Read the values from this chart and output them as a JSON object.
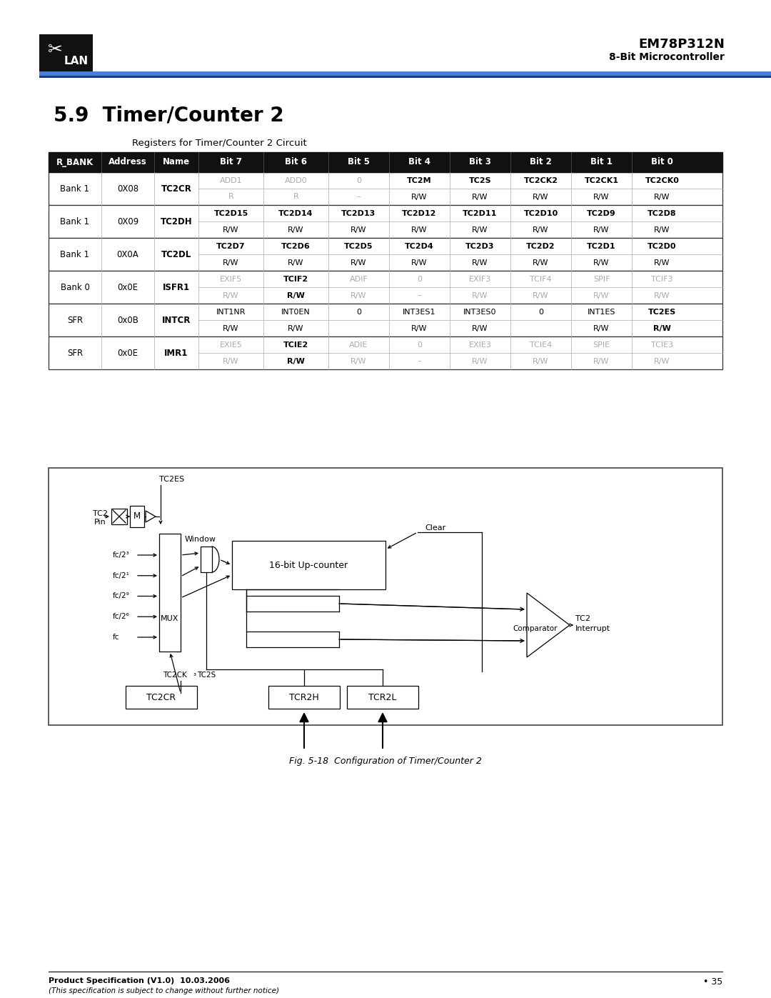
{
  "title_section": "5.9  Timer/Counter 2",
  "subtitle": "Registers for Timer/Counter 2 Circuit",
  "header_labels": [
    "R_BANK",
    "Address",
    "Name",
    "Bit 7",
    "Bit 6",
    "Bit 5",
    "Bit 4",
    "Bit 3",
    "Bit 2",
    "Bit 1",
    "Bit 0"
  ],
  "company": "EM78P312N",
  "company_sub": "8-Bit Microcontroller",
  "footer_left": "Product Specification (V1.0)  10.03.2006",
  "footer_left2": "(This specification is subject to change without further notice)",
  "footer_right": "• 35",
  "fig_caption": "Fig. 5-18  Configuration of Timer/Counter 2",
  "rows": [
    {
      "bank": "Bank 1",
      "addr": "0X08",
      "name": "TC2CR",
      "data_row": [
        "ADD1",
        "ADD0",
        "0",
        "TC2M",
        "TC2S",
        "TC2CK2",
        "TC2CK1",
        "TC2CK0"
      ],
      "rw_row": [
        "R",
        "R",
        "–",
        "R/W",
        "R/W",
        "R/W",
        "R/W",
        "R/W"
      ],
      "data_bold": [
        false,
        false,
        false,
        true,
        true,
        true,
        true,
        true
      ],
      "rw_bold": [
        false,
        false,
        false,
        false,
        false,
        false,
        false,
        false
      ],
      "data_gray": [
        true,
        true,
        true,
        false,
        false,
        false,
        false,
        false
      ],
      "rw_gray": [
        true,
        true,
        true,
        false,
        false,
        false,
        false,
        false
      ]
    },
    {
      "bank": "Bank 1",
      "addr": "0X09",
      "name": "TC2DH",
      "data_row": [
        "TC2D15",
        "TC2D14",
        "TC2D13",
        "TC2D12",
        "TC2D11",
        "TC2D10",
        "TC2D9",
        "TC2D8"
      ],
      "rw_row": [
        "R/W",
        "R/W",
        "R/W",
        "R/W",
        "R/W",
        "R/W",
        "R/W",
        "R/W"
      ],
      "data_bold": [
        true,
        true,
        true,
        true,
        true,
        true,
        true,
        true
      ],
      "rw_bold": [
        false,
        false,
        false,
        false,
        false,
        false,
        false,
        false
      ],
      "data_gray": [
        false,
        false,
        false,
        false,
        false,
        false,
        false,
        false
      ],
      "rw_gray": [
        false,
        false,
        false,
        false,
        false,
        false,
        false,
        false
      ]
    },
    {
      "bank": "Bank 1",
      "addr": "0X0A",
      "name": "TC2DL",
      "data_row": [
        "TC2D7",
        "TC2D6",
        "TC2D5",
        "TC2D4",
        "TC2D3",
        "TC2D2",
        "TC2D1",
        "TC2D0"
      ],
      "rw_row": [
        "R/W",
        "R/W",
        "R/W",
        "R/W",
        "R/W",
        "R/W",
        "R/W",
        "R/W"
      ],
      "data_bold": [
        true,
        true,
        true,
        true,
        true,
        true,
        true,
        true
      ],
      "rw_bold": [
        false,
        false,
        false,
        false,
        false,
        false,
        false,
        false
      ],
      "data_gray": [
        false,
        false,
        false,
        false,
        false,
        false,
        false,
        false
      ],
      "rw_gray": [
        false,
        false,
        false,
        false,
        false,
        false,
        false,
        false
      ]
    },
    {
      "bank": "Bank 0",
      "addr": "0x0E",
      "name": "ISFR1",
      "data_row": [
        "EXIF5",
        "TCIF2",
        "ADIF",
        "0",
        "EXIF3",
        "TCIF4",
        "SPIF",
        "TCIF3"
      ],
      "rw_row": [
        "R/W",
        "R/W",
        "R/W",
        "–",
        "R/W",
        "R/W",
        "R/W",
        "R/W"
      ],
      "data_bold": [
        false,
        true,
        false,
        false,
        false,
        false,
        false,
        false
      ],
      "rw_bold": [
        false,
        true,
        false,
        false,
        false,
        false,
        false,
        false
      ],
      "data_gray": [
        true,
        false,
        true,
        true,
        true,
        true,
        true,
        true
      ],
      "rw_gray": [
        true,
        false,
        true,
        true,
        true,
        true,
        true,
        true
      ]
    },
    {
      "bank": "SFR",
      "addr": "0x0B",
      "name": "INTCR",
      "data_row": [
        "INT1NR",
        "INT0EN",
        "0",
        "INT3ES1",
        "INT3ES0",
        "0",
        "INT1ES",
        "TC2ES"
      ],
      "rw_row": [
        "R/W",
        "R/W",
        "",
        "R/W",
        "R/W",
        "",
        "R/W",
        "R/W"
      ],
      "data_bold": [
        false,
        false,
        false,
        false,
        false,
        false,
        false,
        true
      ],
      "rw_bold": [
        false,
        false,
        false,
        false,
        false,
        false,
        false,
        true
      ],
      "data_gray": [
        false,
        false,
        false,
        false,
        false,
        false,
        false,
        false
      ],
      "rw_gray": [
        false,
        false,
        false,
        false,
        false,
        false,
        false,
        false
      ]
    },
    {
      "bank": "SFR",
      "addr": "0x0E",
      "name": "IMR1",
      "data_row": [
        "EXIE5",
        "TCIE2",
        "ADIE",
        "0",
        "EXIE3",
        "TCIE4",
        "SPIE",
        "TCIE3"
      ],
      "rw_row": [
        "R/W",
        "R/W",
        "R/W",
        "–",
        "R/W",
        "R/W",
        "R/W",
        "R/W"
      ],
      "data_bold": [
        false,
        true,
        false,
        false,
        false,
        false,
        false,
        false
      ],
      "rw_bold": [
        false,
        true,
        false,
        false,
        false,
        false,
        false,
        false
      ],
      "data_gray": [
        true,
        false,
        true,
        true,
        true,
        true,
        true,
        true
      ],
      "rw_gray": [
        true,
        false,
        true,
        true,
        true,
        true,
        true,
        true
      ]
    }
  ]
}
